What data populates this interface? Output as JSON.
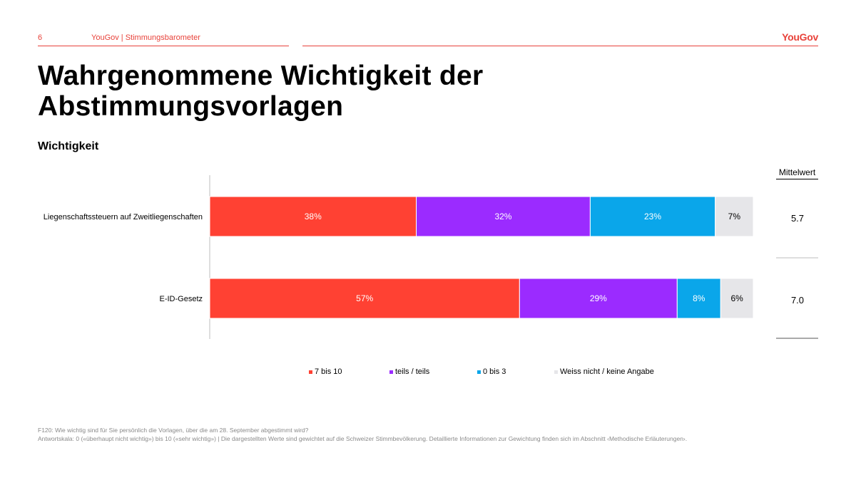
{
  "header": {
    "page_number": "6",
    "doc_title": "YouGov | Stimmungsbarometer",
    "logo": "YouGov"
  },
  "title": "Wahrgenommene Wichtigkeit der Abstimmungsvorlagen",
  "subtitle": "Wichtigkeit",
  "mean_header": "Mittelwert",
  "legend": [
    {
      "label": "7 bis 10",
      "color": "#ff4133"
    },
    {
      "label": "teils / teils",
      "color": "#9b2bff"
    },
    {
      "label": "0 bis 3",
      "color": "#0aa6ea"
    },
    {
      "label": "Weiss nicht / keine Angabe",
      "color": "#e6e6e9"
    }
  ],
  "chart_data": {
    "type": "bar",
    "orientation": "horizontal",
    "stacked": true,
    "categories": [
      "Liegenschaftssteuern auf Zweitliegenschaften",
      "E-ID-Gesetz"
    ],
    "series": [
      {
        "name": "7 bis 10",
        "color": "#ff4133",
        "values": [
          38,
          57
        ]
      },
      {
        "name": "teils / teils",
        "color": "#9b2bff",
        "values": [
          32,
          29
        ]
      },
      {
        "name": "0 bis 3",
        "color": "#0aa6ea",
        "values": [
          23,
          8
        ]
      },
      {
        "name": "Weiss nicht / keine Angabe",
        "color": "#e6e6e9",
        "values": [
          7,
          6
        ]
      }
    ],
    "value_suffix": "%",
    "means": [
      "5.7",
      "7.0"
    ],
    "xlim": [
      0,
      100
    ]
  },
  "footer": {
    "line1": "F120: Wie wichtig sind für Sie persönlich die Vorlagen, über die am 28. September abgestimmt wird?",
    "line2": "Antwortskala: 0 («überhaupt nicht wichtig») bis 10 («sehr wichtig») | Die dargestellten Werte sind gewichtet auf die Schweizer Stimmbevölkerung. Detaillierte Informationen zur Gewichtung finden sich im Abschnitt ‹Methodische Erläuterungen›."
  }
}
